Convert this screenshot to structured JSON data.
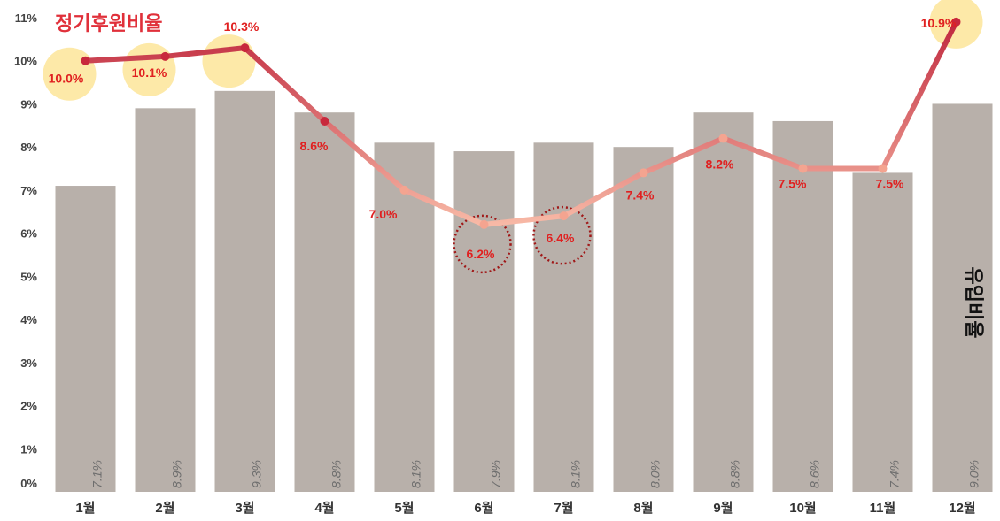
{
  "chart_data": {
    "type": "bar+line",
    "categories": [
      "1월",
      "2월",
      "3월",
      "4월",
      "5월",
      "6월",
      "7월",
      "8월",
      "9월",
      "10월",
      "11월",
      "12월"
    ],
    "y_ticks": [
      "0%",
      "1%",
      "2%",
      "3%",
      "4%",
      "5%",
      "6%",
      "7%",
      "8%",
      "9%",
      "10%",
      "11%"
    ],
    "ylim": [
      0,
      11
    ],
    "grid": false,
    "series": [
      {
        "name": "유입비율",
        "type": "bar",
        "values": [
          7.1,
          8.9,
          9.3,
          8.8,
          8.1,
          7.9,
          8.1,
          8.0,
          8.8,
          8.6,
          7.4,
          9.0
        ],
        "labels": [
          "7.1%",
          "8.9%",
          "9.3%",
          "8.8%",
          "8.1%",
          "7.9%",
          "8.1%",
          "8.0%",
          "8.8%",
          "8.6%",
          "7.4%",
          "9.0%"
        ],
        "color": "#b8b0aa"
      },
      {
        "name": "정기후원비율",
        "type": "line",
        "values": [
          10.0,
          10.1,
          10.3,
          8.6,
          7.0,
          6.2,
          6.4,
          7.4,
          8.2,
          7.5,
          7.5,
          10.9
        ],
        "labels": [
          "10.0%",
          "10.1%",
          "10.3%",
          "8.6%",
          "7.0%",
          "6.2%",
          "6.4%",
          "7.4%",
          "8.2%",
          "7.5%",
          "7.5%",
          "10.9%"
        ],
        "gradient_colors": [
          "#c0283e",
          "#f8b9a6"
        ],
        "highlight_high": [
          0,
          1,
          2,
          11
        ],
        "highlight_low": [
          5,
          6
        ],
        "highlight_high_color": "#fde9a8",
        "highlight_low_color": "#a01818"
      }
    ]
  }
}
